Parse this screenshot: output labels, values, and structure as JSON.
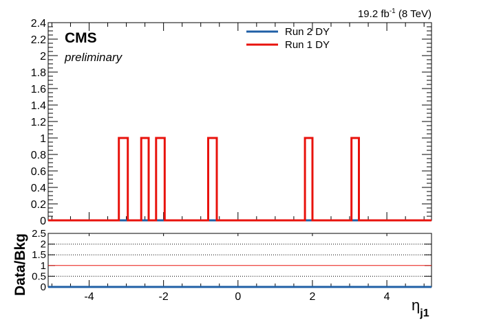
{
  "chart_data": {
    "type": "line",
    "step": true,
    "lumi": {
      "value": "19.2 fb",
      "exp": "-1",
      "energy": " (8 TeV)"
    },
    "cms_label": "CMS",
    "cms_sublabel": "preliminary",
    "xlabel": {
      "symbol": "η",
      "sub": "j1"
    },
    "xlim": [
      -5.1,
      5.2
    ],
    "xticks": [
      -4,
      -2,
      0,
      2,
      4
    ],
    "xtick_labels": [
      "-4",
      "-2",
      "0",
      "2",
      "4"
    ],
    "ylim": [
      0,
      2.4
    ],
    "yticks": [
      0,
      0.2,
      0.4,
      0.6,
      0.8,
      1,
      1.2,
      1.4,
      1.6,
      1.8,
      2,
      2.2,
      2.4
    ],
    "ytick_labels": [
      "0",
      "0.2",
      "0.4",
      "0.6",
      "0.8",
      "1",
      "1.2",
      "1.4",
      "1.6",
      "1.8",
      "2",
      "2.2",
      "2.4"
    ],
    "bin_edges": [
      -5.1,
      -3.2,
      -2.96,
      -2.6,
      -2.4,
      -2.2,
      -1.97,
      -0.8,
      -0.57,
      1.8,
      2.0,
      3.05,
      3.25,
      5.2
    ],
    "series": [
      {
        "name": "Run 2 DY",
        "color": "#1f5fa6",
        "values": [
          0,
          0,
          0,
          0,
          0,
          0,
          0,
          0,
          0,
          0,
          0,
          0,
          0
        ]
      },
      {
        "name": "Run 1 DY",
        "color": "#e8120c",
        "values": [
          0,
          1,
          0,
          1,
          0,
          1,
          0,
          1,
          0,
          1,
          0,
          1,
          0
        ]
      }
    ],
    "ratio": {
      "ylabel": "Data/Bkg",
      "ylim": [
        0,
        2.5
      ],
      "yticks": [
        0,
        0.5,
        1,
        1.5,
        2,
        2.5
      ],
      "ytick_labels": [
        "0",
        "0.5",
        "1",
        "1.5",
        "2",
        "2.5"
      ],
      "dotted_lines": [
        0.5,
        1.5,
        2
      ],
      "reference": 1,
      "reference_color": "#e8120c",
      "values_color": "#1f5fa6",
      "value": 0
    }
  }
}
